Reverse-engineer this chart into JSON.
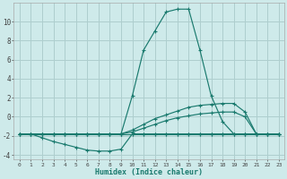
{
  "xlabel": "Humidex (Indice chaleur)",
  "background_color": "#ceeaea",
  "grid_color": "#aecece",
  "line_color": "#1a7a6e",
  "xlim_min": -0.5,
  "xlim_max": 23.5,
  "ylim_min": -4.5,
  "ylim_max": 12.0,
  "yticks": [
    -4,
    -2,
    0,
    2,
    4,
    6,
    8,
    10
  ],
  "xtick_labels": [
    "0",
    "1",
    "2",
    "3",
    "4",
    "5",
    "6",
    "7",
    "8",
    "9",
    "10",
    "11",
    "12",
    "13",
    "14",
    "15",
    "16",
    "17",
    "18",
    "19",
    "20",
    "21",
    "22",
    "23"
  ],
  "curves": [
    {
      "x": [
        0,
        1,
        2,
        3,
        4,
        5,
        6,
        7,
        8,
        9,
        10,
        11,
        12,
        13,
        14,
        15,
        16,
        17,
        18,
        19,
        20,
        21,
        22,
        23
      ],
      "y": [
        -1.8,
        -1.8,
        -1.8,
        -1.8,
        -1.8,
        -1.8,
        -1.8,
        -1.8,
        -1.8,
        -1.8,
        -1.8,
        -1.8,
        -1.8,
        -1.8,
        -1.8,
        -1.8,
        -1.8,
        -1.8,
        -1.8,
        -1.8,
        -1.8,
        -1.8,
        -1.8,
        -1.8
      ]
    },
    {
      "x": [
        0,
        1,
        2,
        3,
        4,
        5,
        6,
        7,
        8,
        9,
        10,
        11,
        12,
        13,
        14,
        15,
        16,
        17,
        18,
        19,
        20,
        21,
        22,
        23
      ],
      "y": [
        -1.8,
        -1.8,
        -2.2,
        -2.6,
        -2.9,
        -3.2,
        -3.5,
        -3.6,
        -3.6,
        -3.4,
        -1.8,
        -1.8,
        -1.8,
        -1.8,
        -1.8,
        -1.8,
        -1.8,
        -1.8,
        -1.8,
        -1.8,
        -1.8,
        -1.8,
        -1.8,
        -1.8
      ]
    },
    {
      "x": [
        0,
        1,
        2,
        3,
        4,
        5,
        6,
        7,
        8,
        9,
        10,
        11,
        12,
        13,
        14,
        15,
        16,
        17,
        18,
        19,
        20,
        21,
        22,
        23
      ],
      "y": [
        -1.8,
        -1.8,
        -1.8,
        -1.8,
        -1.8,
        -1.8,
        -1.8,
        -1.8,
        -1.8,
        -1.8,
        -1.6,
        -1.2,
        -0.8,
        -0.4,
        -0.1,
        0.1,
        0.3,
        0.4,
        0.5,
        0.5,
        0.0,
        -1.8,
        -1.8,
        -1.8
      ]
    },
    {
      "x": [
        0,
        1,
        2,
        3,
        4,
        5,
        6,
        7,
        8,
        9,
        10,
        11,
        12,
        13,
        14,
        15,
        16,
        17,
        18,
        19,
        20,
        21,
        22,
        23
      ],
      "y": [
        -1.8,
        -1.8,
        -1.8,
        -1.8,
        -1.8,
        -1.8,
        -1.8,
        -1.8,
        -1.8,
        -1.8,
        -1.4,
        -0.8,
        -0.2,
        0.2,
        0.6,
        1.0,
        1.2,
        1.3,
        1.4,
        1.4,
        0.5,
        -1.8,
        -1.8,
        -1.8
      ]
    },
    {
      "x": [
        0,
        1,
        2,
        3,
        4,
        5,
        6,
        7,
        8,
        9,
        10,
        11,
        12,
        13,
        14,
        15,
        16,
        17,
        18,
        19,
        20,
        21,
        22,
        23
      ],
      "y": [
        -1.8,
        -1.8,
        -1.8,
        -1.8,
        -1.8,
        -1.8,
        -1.8,
        -1.8,
        -1.8,
        -1.8,
        2.2,
        7.0,
        9.0,
        11.0,
        11.3,
        11.3,
        7.0,
        2.2,
        -0.5,
        -1.8,
        -1.8,
        -1.8,
        -1.8,
        -1.8
      ]
    }
  ]
}
